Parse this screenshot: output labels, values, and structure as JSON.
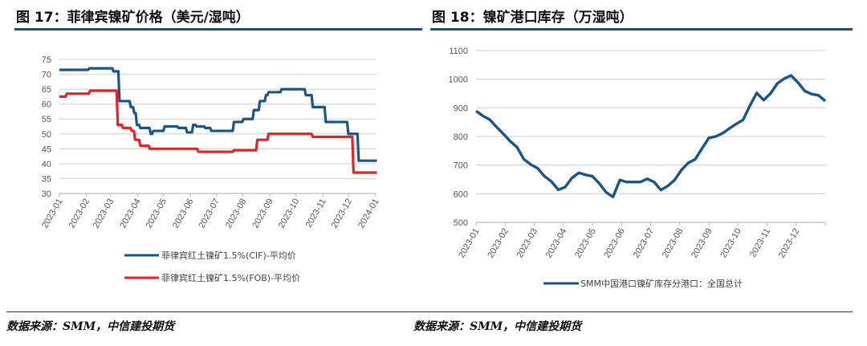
{
  "colors": {
    "cif": "#1a5585",
    "fob": "#e0242b",
    "inventory": "#1a5585",
    "rule": "#1e4f7a"
  },
  "left": {
    "title": "图 17：菲律宾镍矿价格（美元/湿吨）",
    "source": "数据来源：SMM，中信建投期货"
  },
  "right": {
    "title": "图 18：镍矿港口库存（万湿吨）",
    "source": "数据来源：SMM，中信建投期货"
  },
  "chart_data": [
    {
      "type": "line",
      "step": true,
      "ylim": [
        30,
        75
      ],
      "yticks": [
        "30",
        "35",
        "40",
        "45",
        "50",
        "55",
        "60",
        "65",
        "70",
        "75"
      ],
      "xlim": [
        "2023-01-01",
        "2024-01-01"
      ],
      "xticks": [
        "2023-01",
        "2023-02",
        "2023-03",
        "2023-04",
        "2023-05",
        "2023-06",
        "2023-07",
        "2023-08",
        "2023-09",
        "2023-10",
        "2023-11",
        "2023-12",
        "2024-01"
      ],
      "grid": true,
      "legend": "bottom",
      "series": [
        {
          "name": "菲律宾红土镍矿1.5%(CIF)-平均价",
          "color_key": "cif",
          "points": [
            [
              "2023-01-01",
              71.5
            ],
            [
              "2023-02-03",
              72
            ],
            [
              "2023-03-03",
              71
            ],
            [
              "2023-03-10",
              61
            ],
            [
              "2023-03-23",
              59
            ],
            [
              "2023-03-27",
              57
            ],
            [
              "2023-03-30",
              53
            ],
            [
              "2023-04-03",
              52
            ],
            [
              "2023-04-15",
              50
            ],
            [
              "2023-04-18",
              51
            ],
            [
              "2023-05-01",
              52.5
            ],
            [
              "2023-05-17",
              52
            ],
            [
              "2023-05-27",
              50.5
            ],
            [
              "2023-06-03",
              53
            ],
            [
              "2023-06-07",
              52.5
            ],
            [
              "2023-06-17",
              52
            ],
            [
              "2023-06-24",
              51
            ],
            [
              "2023-07-20",
              54
            ],
            [
              "2023-07-31",
              55
            ],
            [
              "2023-08-12",
              58
            ],
            [
              "2023-08-19",
              61
            ],
            [
              "2023-08-26",
              63
            ],
            [
              "2023-08-29",
              64
            ],
            [
              "2023-09-13",
              65
            ],
            [
              "2023-10-11",
              63
            ],
            [
              "2023-10-19",
              59
            ],
            [
              "2023-11-03",
              54
            ],
            [
              "2023-11-29",
              50
            ],
            [
              "2023-12-11",
              41
            ],
            [
              "2024-01-01",
              41
            ]
          ]
        },
        {
          "name": "菲律宾红土镍矿1.5%(FOB)-平均价",
          "color_key": "fob",
          "points": [
            [
              "2023-01-01",
              62.5
            ],
            [
              "2023-01-08",
              63.5
            ],
            [
              "2023-02-04",
              64.5
            ],
            [
              "2023-03-08",
              53
            ],
            [
              "2023-03-14",
              52
            ],
            [
              "2023-03-24",
              51
            ],
            [
              "2023-03-28",
              48
            ],
            [
              "2023-04-03",
              46
            ],
            [
              "2023-04-14",
              45
            ],
            [
              "2023-06-09",
              44
            ],
            [
              "2023-07-20",
              44.5
            ],
            [
              "2023-08-16",
              48
            ],
            [
              "2023-08-29",
              50
            ],
            [
              "2023-10-19",
              49
            ],
            [
              "2023-12-05",
              37
            ],
            [
              "2024-01-01",
              37
            ]
          ]
        }
      ]
    },
    {
      "type": "line",
      "ylim": [
        500,
        1100
      ],
      "yticks": [
        "500",
        "600",
        "700",
        "800",
        "900",
        "1000",
        "1100"
      ],
      "xlim": [
        "2023-01-06",
        "2023-12-29"
      ],
      "xticks": [
        "2023-01",
        "2023-02",
        "2023-03",
        "2023-04",
        "2023-05",
        "2023-06",
        "2023-07",
        "2023-08",
        "2023-09",
        "2023-10",
        "2023-11",
        "2023-12"
      ],
      "grid": true,
      "legend": "bottom",
      "series": [
        {
          "name": "SMM中国港口镍矿库存分港口：全国总计",
          "color_key": "inventory",
          "start": "2023-01-06",
          "interval_days": 7,
          "values": [
            889,
            872,
            859,
            833,
            809,
            783,
            762,
            720,
            702,
            689,
            661,
            643,
            614,
            623,
            655,
            673,
            666,
            661,
            636,
            605,
            589,
            648,
            641,
            641,
            641,
            652,
            641,
            613,
            627,
            648,
            683,
            708,
            720,
            758,
            795,
            800,
            811,
            828,
            844,
            858,
            908,
            952,
            927,
            950,
            985,
            1002,
            1013,
            989,
            959,
            948,
            944,
            924
          ]
        }
      ]
    }
  ]
}
